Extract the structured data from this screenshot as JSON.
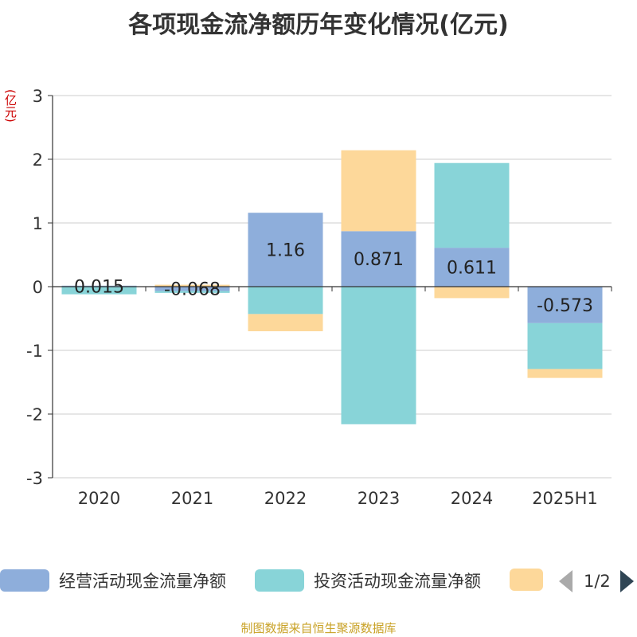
{
  "title": "各项现金流净额历年变化情况(亿元)",
  "unit_label": "(亿元)",
  "source_note": "制图数据来自恒生聚源数据库",
  "legend": {
    "pager": "1/2",
    "items": [
      {
        "label": "经营活动现金流量净额",
        "color": "#8eaedb"
      },
      {
        "label": "投资活动现金流量净额",
        "color": "#88d4d8"
      },
      {
        "label": "",
        "color": "#fdd89a"
      }
    ]
  },
  "chart_data": {
    "type": "bar",
    "stacked": true,
    "categories": [
      "2020",
      "2021",
      "2022",
      "2023",
      "2024",
      "2025H1"
    ],
    "ylim": [
      -3,
      3
    ],
    "yticks": [
      -3,
      -2,
      -1,
      0,
      1,
      2,
      3
    ],
    "grid": true,
    "legend_position": "bottom",
    "series": [
      {
        "name": "经营活动现金流量净额",
        "color": "#8eaedb",
        "values": [
          0.015,
          -0.068,
          1.16,
          0.871,
          0.611,
          -0.573
        ],
        "labels": [
          "0.015",
          "-0.068",
          "1.16",
          "0.871",
          "0.611",
          "-0.573"
        ]
      },
      {
        "color": "#88d4d8",
        "values": [
          -0.12,
          -0.03,
          -0.43,
          -2.16,
          1.33,
          -0.72
        ]
      },
      {
        "color": "#fdd89a",
        "values": [
          0.0,
          0.03,
          -0.27,
          1.27,
          -0.18,
          -0.14
        ]
      }
    ]
  }
}
